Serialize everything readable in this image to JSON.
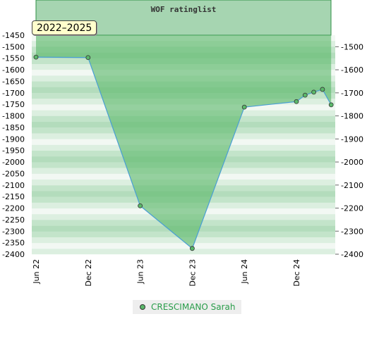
{
  "chart_data": {
    "type": "area",
    "title": "WOF ratinglist",
    "badge": "2022–2025",
    "y_inverted": true,
    "ylim": [
      -1450,
      -2400
    ],
    "y_ticks_left": [
      "-1450",
      "-1500",
      "-1550",
      "-1600",
      "-1650",
      "-1700",
      "-1750",
      "-1800",
      "-1850",
      "-1900",
      "-1950",
      "-2000",
      "-2050",
      "-2100",
      "-2150",
      "-2200",
      "-2250",
      "-2300",
      "-2350",
      "-2400"
    ],
    "y_ticks_right": [
      "-1500",
      "-1600",
      "-1700",
      "-1800",
      "-1900",
      "-2000",
      "-2100",
      "-2200",
      "-2300",
      "-2400"
    ],
    "x_ticks": [
      "Jun 22",
      "Dec 22",
      "Jun 23",
      "Dec 23",
      "Jun 24",
      "Dec 24"
    ],
    "series": [
      {
        "name": "CRESCIMANO Sarah",
        "points": [
          {
            "x": "Jun 22",
            "y": -1545
          },
          {
            "x": "Dec 22",
            "y": -1547
          },
          {
            "x": "Jun 23",
            "y": -2190
          },
          {
            "x": "Dec 23",
            "y": -2375
          },
          {
            "x": "Jun 24",
            "y": -1762
          },
          {
            "x": "Dec 24",
            "y": -1738
          },
          {
            "x": "Jan 25",
            "y": -1710
          },
          {
            "x": "Feb 25",
            "y": -1697
          },
          {
            "x": "Mar 25",
            "y": -1685
          },
          {
            "x": "Apr 25",
            "y": -1752
          }
        ]
      }
    ],
    "colors": {
      "area_fill": "#5cb86b",
      "line": "#4a9fd4",
      "marker": "#5ab86a",
      "legend_text": "#2a9d4a"
    }
  }
}
